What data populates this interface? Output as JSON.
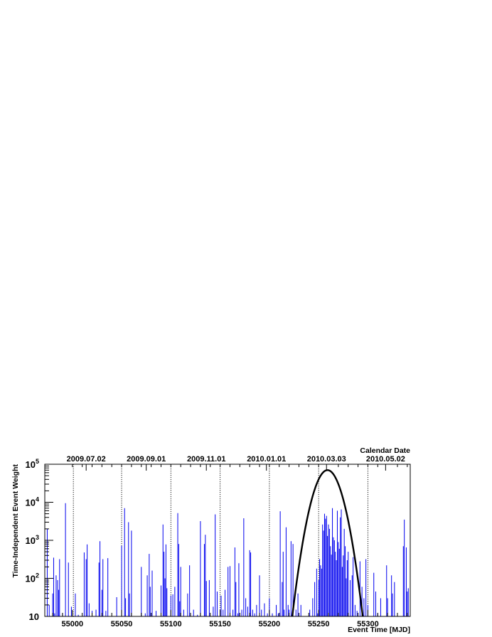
{
  "chart_data": {
    "type": "bar",
    "ylabel": "Time-Independent Event Weight",
    "xlabel": "Event Time [MJD]",
    "top_axis_title": "Calendar Date",
    "xlim": [
      54972,
      55343
    ],
    "ylim": [
      10,
      100000
    ],
    "y_scale": "log",
    "grid": false,
    "x_ticks": [
      "55000",
      "55050",
      "55100",
      "55150",
      "55200",
      "55250",
      "55300"
    ],
    "y_ticks": [
      {
        "base": "10",
        "exp": ""
      },
      {
        "base": "10",
        "exp": "2"
      },
      {
        "base": "10",
        "exp": "3"
      },
      {
        "base": "10",
        "exp": "4"
      },
      {
        "base": "10",
        "exp": "5"
      }
    ],
    "calendar_dates": [
      {
        "label": "2009.07.02",
        "mjd": 55014
      },
      {
        "label": "2009.09.01",
        "mjd": 55075
      },
      {
        "label": "2009.11.01",
        "mjd": 55136
      },
      {
        "label": "2010.01.01",
        "mjd": 55197
      },
      {
        "label": "2010.03.03",
        "mjd": 55258
      },
      {
        "label": "2010.05.02",
        "mjd": 55318
      }
    ],
    "date_line_mjd": [
      55001,
      55050,
      55100,
      55150,
      55200,
      55250,
      55300
    ],
    "series": [
      {
        "color": "#0000ee",
        "events": [
          [
            54974.5,
            2000
          ],
          [
            54976.5,
            20
          ],
          [
            54980,
            40
          ],
          [
            54981,
            350
          ],
          [
            54982,
            12
          ],
          [
            54983.5,
            120
          ],
          [
            54985,
            90
          ],
          [
            54986,
            50
          ],
          [
            54987,
            320
          ],
          [
            54990,
            12
          ],
          [
            54993,
            9500
          ],
          [
            54996,
            260
          ],
          [
            54999,
            18
          ],
          [
            55003,
            40
          ],
          [
            55006,
            11
          ],
          [
            55012,
            480
          ],
          [
            55014,
            320
          ],
          [
            55015,
            780
          ],
          [
            55017,
            22
          ],
          [
            55020,
            14
          ],
          [
            55024,
            15
          ],
          [
            55027,
            260
          ],
          [
            55028,
            950
          ],
          [
            55030,
            50
          ],
          [
            55031,
            320
          ],
          [
            55034,
            14
          ],
          [
            55036,
            340
          ],
          [
            55045,
            32
          ],
          [
            55050,
            720
          ],
          [
            55053,
            7000
          ],
          [
            55054,
            30
          ],
          [
            55057,
            3000
          ],
          [
            55058,
            40
          ],
          [
            55060,
            1800
          ],
          [
            55070,
            200
          ],
          [
            55074,
            12
          ],
          [
            55076,
            120
          ],
          [
            55078,
            440
          ],
          [
            55079,
            60
          ],
          [
            55081,
            160
          ],
          [
            55085,
            14
          ],
          [
            55090,
            65
          ],
          [
            55092,
            2600
          ],
          [
            55093,
            500
          ],
          [
            55094,
            100
          ],
          [
            55095,
            780
          ],
          [
            55096,
            55
          ],
          [
            55100,
            35
          ],
          [
            55102,
            38
          ],
          [
            55104,
            60
          ],
          [
            55107,
            5200
          ],
          [
            55108,
            800
          ],
          [
            55109,
            25
          ],
          [
            55110,
            200
          ],
          [
            55113,
            15
          ],
          [
            55117,
            40
          ],
          [
            55119,
            220
          ],
          [
            55123,
            15
          ],
          [
            55127,
            11
          ],
          [
            55130,
            3200
          ],
          [
            55134,
            800
          ],
          [
            55135,
            1400
          ],
          [
            55136,
            85
          ],
          [
            55139,
            90
          ],
          [
            55143,
            18
          ],
          [
            55145,
            4800
          ],
          [
            55147,
            45
          ],
          [
            55151,
            35
          ],
          [
            55153,
            15
          ],
          [
            55155,
            50
          ],
          [
            55158,
            200
          ],
          [
            55160,
            210
          ],
          [
            55163,
            15
          ],
          [
            55165,
            650
          ],
          [
            55166,
            80
          ],
          [
            55168,
            12
          ],
          [
            55169,
            250
          ],
          [
            55172,
            15
          ],
          [
            55174,
            3800
          ],
          [
            55176,
            30
          ],
          [
            55178,
            18
          ],
          [
            55180,
            550
          ],
          [
            55181,
            480
          ],
          [
            55183,
            15
          ],
          [
            55185,
            12
          ],
          [
            55187,
            20
          ],
          [
            55190,
            120
          ],
          [
            55192,
            15
          ],
          [
            55195,
            22
          ],
          [
            55198,
            12
          ],
          [
            55200,
            30
          ],
          [
            55203,
            12
          ],
          [
            55207,
            20
          ],
          [
            55209,
            12
          ],
          [
            55211,
            5800
          ],
          [
            55213,
            80
          ],
          [
            55214,
            500
          ],
          [
            55215,
            15
          ],
          [
            55217,
            2200
          ],
          [
            55219,
            20
          ],
          [
            55220,
            15
          ],
          [
            55222,
            950
          ],
          [
            55224,
            800
          ],
          [
            55227,
            15
          ],
          [
            55229,
            40
          ],
          [
            55230,
            12
          ],
          [
            55232,
            20
          ],
          [
            55241,
            15
          ],
          [
            55244,
            30
          ],
          [
            55246,
            80
          ],
          [
            55248,
            180
          ],
          [
            55249,
            12
          ],
          [
            55250,
            90
          ],
          [
            55251,
            320
          ],
          [
            55252,
            220
          ],
          [
            55253,
            180
          ],
          [
            55254,
            2600
          ],
          [
            55255,
            1800
          ],
          [
            55256,
            5000
          ],
          [
            55257,
            3700
          ],
          [
            55258,
            4400
          ],
          [
            55259,
            1300
          ],
          [
            55260,
            2600
          ],
          [
            55261,
            2000
          ],
          [
            55262,
            700
          ],
          [
            55263,
            420
          ],
          [
            55264,
            7000
          ],
          [
            55265,
            1200
          ],
          [
            55266,
            1000
          ],
          [
            55267,
            500
          ],
          [
            55268,
            300
          ],
          [
            55269,
            6000
          ],
          [
            55270,
            900
          ],
          [
            55271,
            600
          ],
          [
            55272,
            4000
          ],
          [
            55273,
            6500
          ],
          [
            55274,
            200
          ],
          [
            55275,
            400
          ],
          [
            55276,
            2000
          ],
          [
            55277,
            700
          ],
          [
            55278,
            100
          ],
          [
            55279,
            300
          ],
          [
            55280,
            500
          ],
          [
            55282,
            90
          ],
          [
            55284,
            120
          ],
          [
            55285,
            360
          ],
          [
            55287,
            20
          ],
          [
            55289,
            14
          ],
          [
            55292,
            280
          ],
          [
            55294,
            60
          ],
          [
            55296,
            30
          ],
          [
            55298,
            320
          ],
          [
            55300,
            20
          ],
          [
            55306,
            140
          ],
          [
            55308,
            45
          ],
          [
            55310,
            12
          ],
          [
            55313,
            30
          ],
          [
            55319,
            220
          ],
          [
            55320,
            30
          ],
          [
            55324,
            120
          ],
          [
            55325,
            40
          ],
          [
            55327,
            80
          ],
          [
            55336,
            700
          ],
          [
            55337,
            3500
          ],
          [
            55339,
            650
          ],
          [
            55340,
            45
          ],
          [
            55341,
            55
          ]
        ]
      },
      {
        "color": "#000000",
        "type": "line",
        "shape": "gaussian",
        "peak_mjd": 55259,
        "peak_value": 70000,
        "sigma_days": 8.5
      }
    ]
  }
}
